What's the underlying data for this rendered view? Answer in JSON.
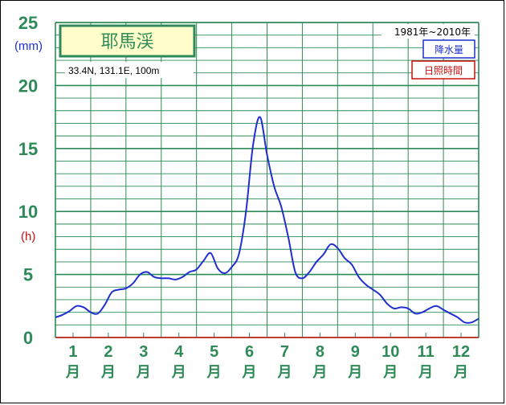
{
  "station": {
    "name": "耶馬渓",
    "coords": "33.4N,  131.1E,  100m",
    "period": "1981年~2010年"
  },
  "units": {
    "precip": "(mm)",
    "sunshine": "(h)"
  },
  "legend": {
    "precip": "降水量",
    "sunshine": "日照時間"
  },
  "colors": {
    "grid": "#2e8b57",
    "precip_line": "#1f2fd0",
    "sunshine_line": "#cc1010"
  },
  "chart_data": {
    "type": "line",
    "title": "耶馬渓",
    "ylim": [
      0,
      25
    ],
    "yticks": [
      "0",
      "5",
      "10",
      "15",
      "20",
      "25"
    ],
    "month_labels": [
      "1",
      "2",
      "3",
      "4",
      "5",
      "6",
      "7",
      "8",
      "9",
      "10",
      "11",
      "12"
    ],
    "month_unit": "月",
    "series": [
      {
        "name": "降水量",
        "x": [
          1.0,
          1.2,
          1.4,
          1.6,
          1.8,
          2.0,
          2.2,
          2.4,
          2.6,
          2.8,
          3.0,
          3.2,
          3.4,
          3.6,
          3.8,
          4.0,
          4.2,
          4.4,
          4.6,
          4.8,
          5.0,
          5.2,
          5.4,
          5.6,
          5.8,
          6.0,
          6.2,
          6.4,
          6.6,
          6.8,
          7.0,
          7.2,
          7.4,
          7.6,
          7.8,
          8.0,
          8.2,
          8.4,
          8.6,
          8.8,
          9.0,
          9.2,
          9.4,
          9.6,
          9.8,
          10.0,
          10.2,
          10.4,
          10.6,
          10.8,
          11.0,
          11.2,
          11.4,
          11.6,
          11.8,
          12.0,
          12.2,
          12.4,
          12.6,
          12.8,
          13.0
        ],
        "values": [
          1.6,
          1.8,
          2.1,
          2.5,
          2.4,
          2.0,
          1.9,
          2.6,
          3.6,
          3.8,
          3.9,
          4.3,
          5.0,
          5.2,
          4.8,
          4.7,
          4.7,
          4.6,
          4.8,
          5.2,
          5.4,
          6.1,
          6.7,
          5.5,
          5.1,
          5.6,
          6.6,
          9.9,
          15.2,
          17.5,
          14.5,
          12.0,
          10.4,
          8.0,
          5.2,
          4.7,
          5.2,
          6.0,
          6.6,
          7.4,
          7.1,
          6.3,
          5.8,
          4.8,
          4.2,
          3.8,
          3.4,
          2.7,
          2.3,
          2.4,
          2.3,
          1.9,
          2.0,
          2.3,
          2.5,
          2.2,
          1.9,
          1.6,
          1.2,
          1.2,
          1.5
        ]
      }
    ]
  }
}
